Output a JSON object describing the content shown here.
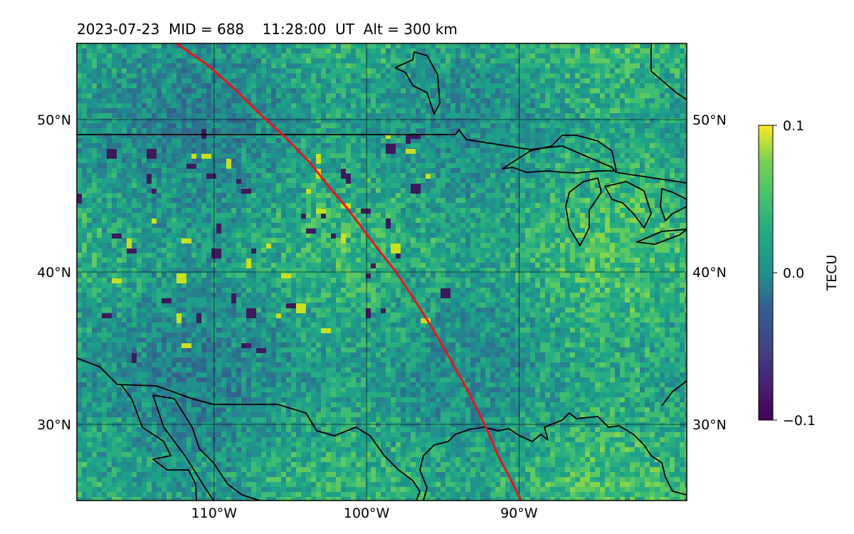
{
  "title": "2023-07-23  MID = 688    11:28:00  UT  Alt = 300 km",
  "map": {
    "lon_range": [
      -119,
      -79
    ],
    "lat_range": [
      25,
      55
    ],
    "lat_ticks": [
      {
        "value": 30,
        "label": "30°N"
      },
      {
        "value": 40,
        "label": "40°N"
      },
      {
        "value": 50,
        "label": "50°N"
      }
    ],
    "lon_ticks": [
      {
        "value": -110,
        "label": "110°W"
      },
      {
        "value": -100,
        "label": "100°W"
      },
      {
        "value": -90,
        "label": "90°W"
      }
    ],
    "grid": true,
    "field": "TEC perturbation (random-textured field)",
    "track_color": "#e8141c",
    "coast_color": "#000000"
  },
  "colorbar": {
    "label": "TECU",
    "min": -0.1,
    "max": 0.1,
    "ticks": [
      {
        "value": 0.1,
        "label": "0.1"
      },
      {
        "value": 0.0,
        "label": "0.0"
      },
      {
        "value": -0.1,
        "label": "−0.1"
      }
    ],
    "colormap": "viridis"
  }
}
